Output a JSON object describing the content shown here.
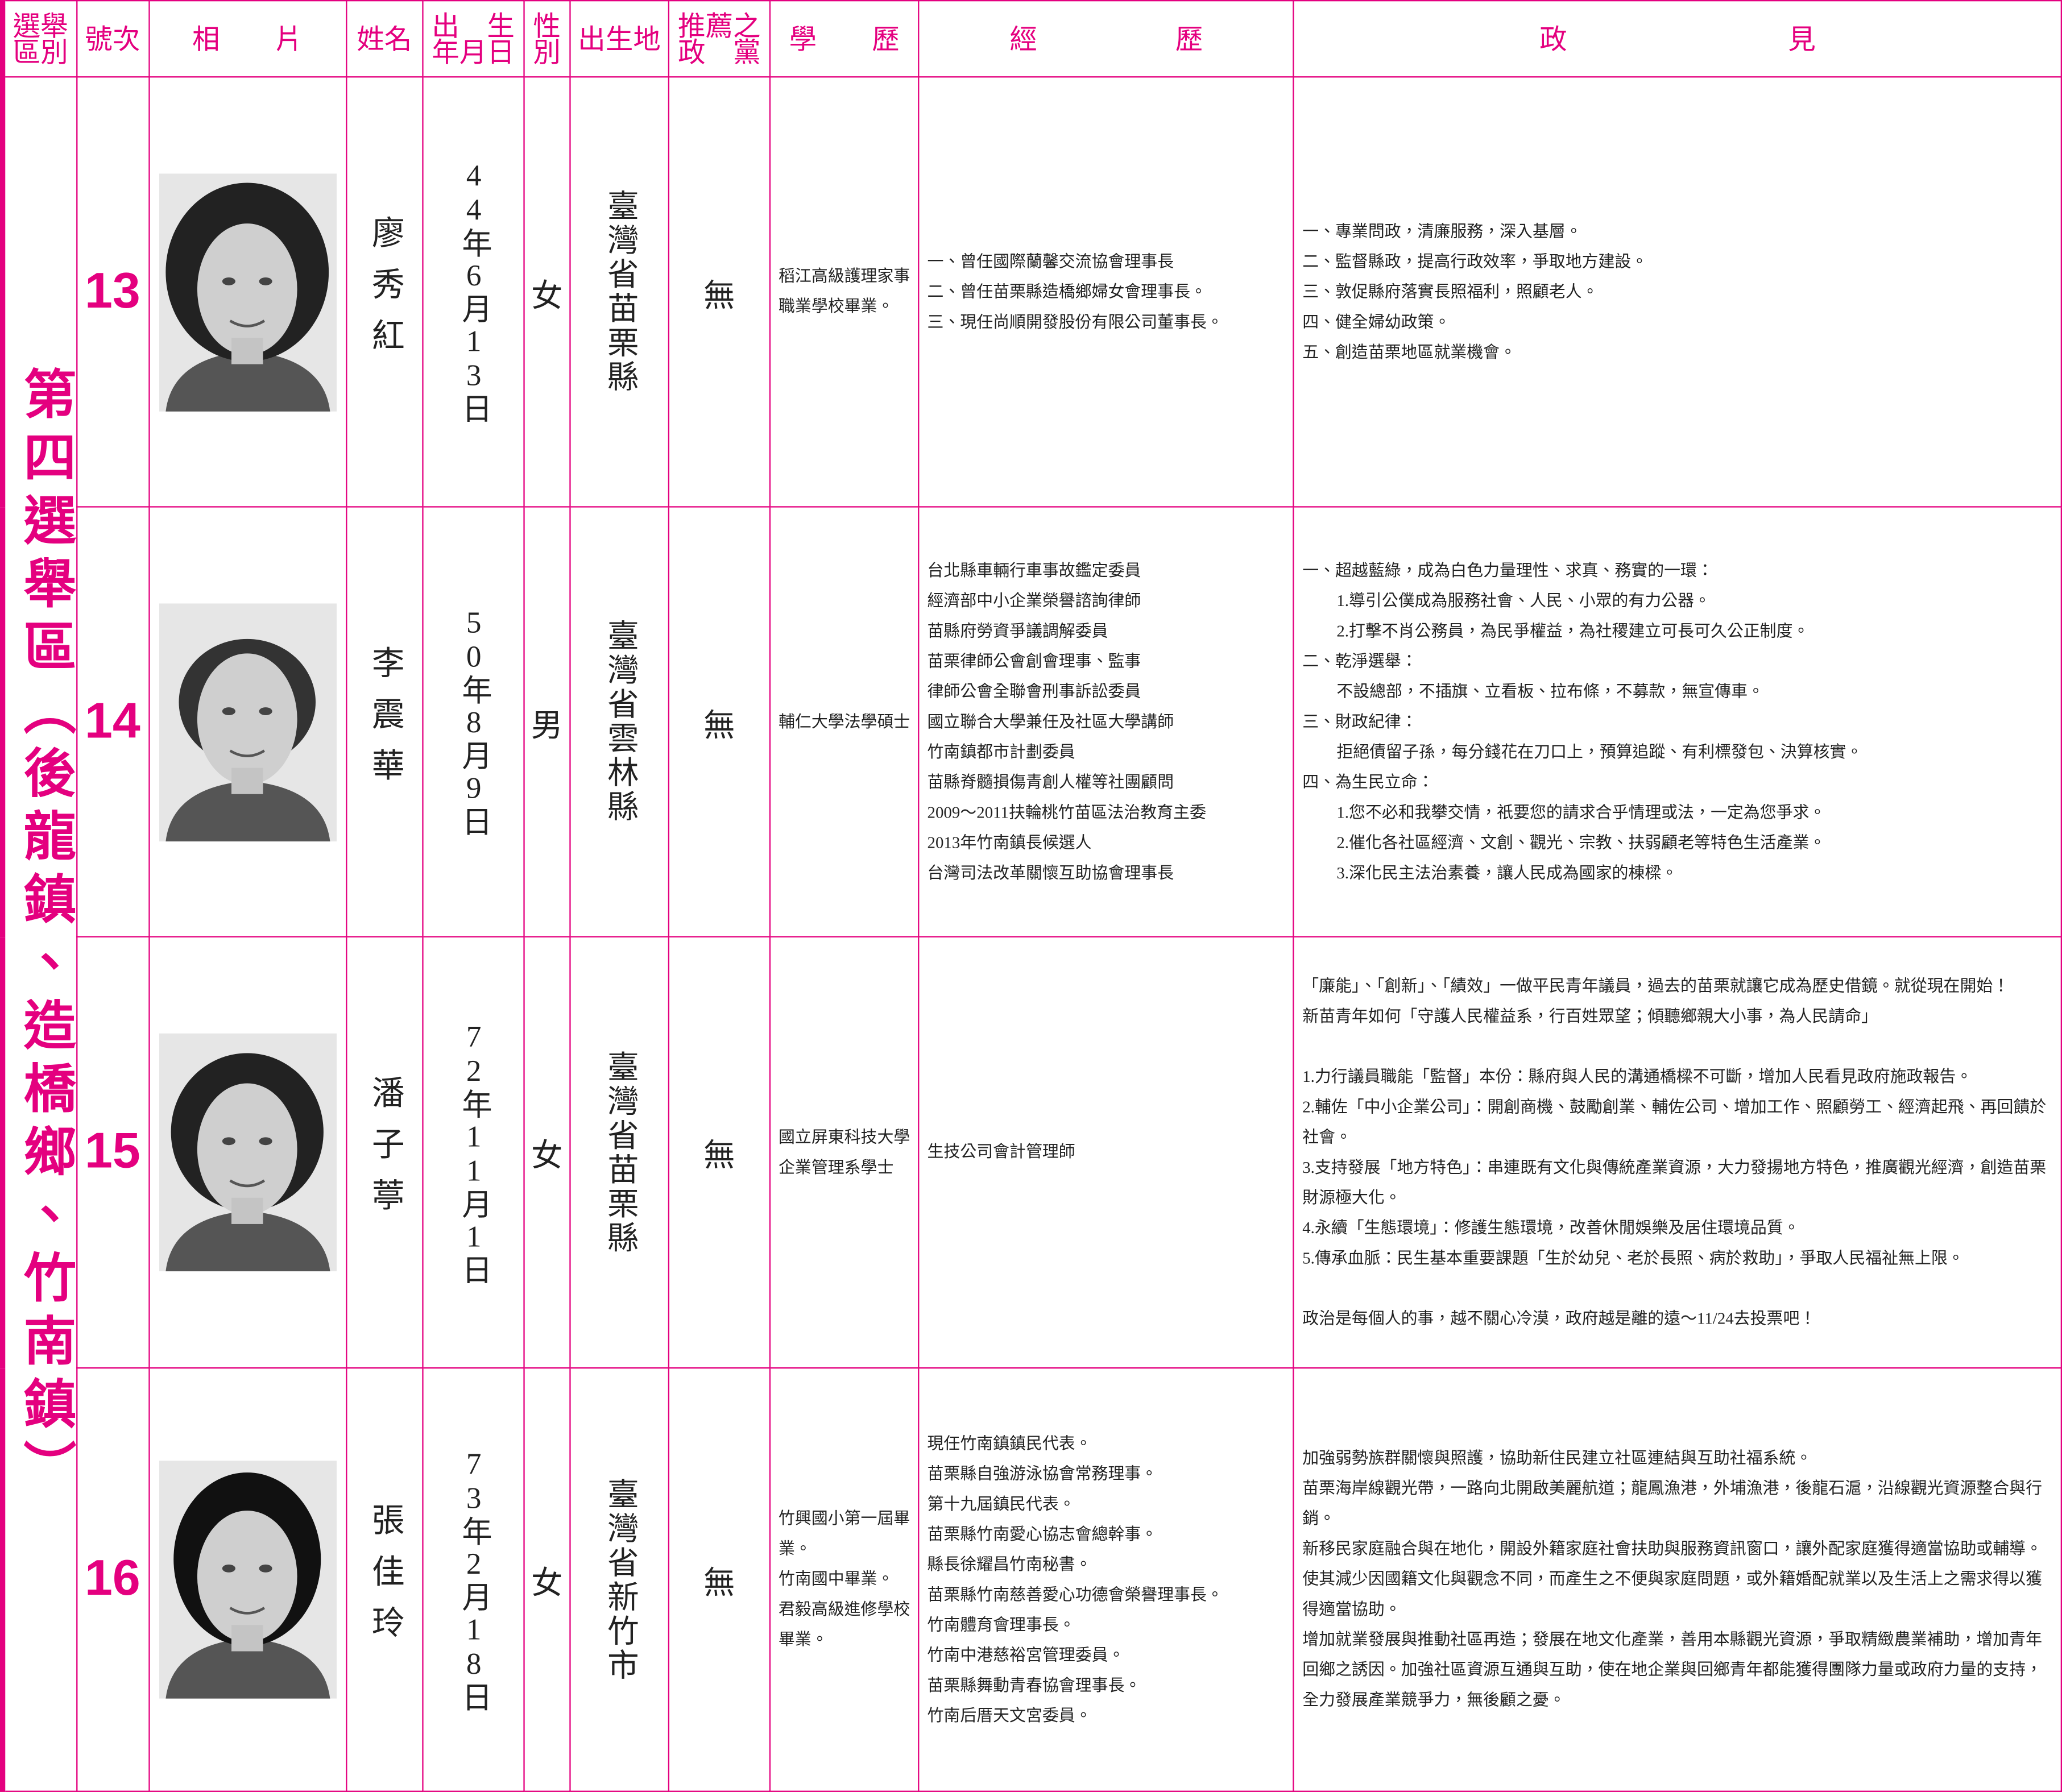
{
  "header": {
    "columns": [
      [
        "選舉",
        "區別"
      ],
      [
        "號次"
      ],
      [
        "相　　片"
      ],
      [
        "姓名"
      ],
      [
        "出　生",
        "年月日"
      ],
      [
        "性",
        "別"
      ],
      [
        "出生地"
      ],
      [
        "推薦之",
        "政　黨"
      ],
      [
        "學　　歷"
      ],
      [
        "經　　　　　歷"
      ],
      [
        "政　　　　　　　　見"
      ]
    ]
  },
  "district": "第四選舉區（後龍鎮、造橋鄉、竹南鎮）",
  "candidates": [
    {
      "number": "13",
      "name": "廖秀紅",
      "birth": "44年6月13日",
      "gender": "女",
      "birthplace": "臺灣省苗栗縣",
      "party": "無",
      "education": [
        "稻江高級護理家事職業學校畢業。"
      ],
      "experience": [
        "一、曾任國際蘭馨交流協會理事長",
        "二、曾任苗栗縣造橋鄉婦女會理事長。",
        "三、現任尚順開發股份有限公司董事長。"
      ],
      "platform": [
        [
          "一、專業問政，清廉服務，深入基層。",
          "二、監督縣政，提高行政效率，爭取地方建設。",
          "三、敦促縣府落實長照福利，照顧老人。",
          "四、健全婦幼政策。",
          "五、創造苗栗地區就業機會。"
        ]
      ]
    },
    {
      "number": "14",
      "name": "李震華",
      "birth": "50年8月9日",
      "gender": "男",
      "birthplace": "臺灣省雲林縣",
      "party": "無",
      "education": [
        "輔仁大學法學碩士"
      ],
      "experience": [
        "台北縣車輛行車事故鑑定委員",
        "經濟部中小企業榮譽諮詢律師",
        "苗縣府勞資爭議調解委員",
        "苗栗律師公會創會理事、監事",
        "律師公會全聯會刑事訴訟委員",
        "國立聯合大學兼任及社區大學講師",
        "竹南鎮都市計劃委員",
        "苗縣脊髓損傷青創人權等社團顧問",
        "2009～2011扶輪桃竹苗區法治教育主委",
        "2013年竹南鎮長候選人",
        "台灣司法改革關懷互助協會理事長"
      ],
      "platform": [
        [
          {
            "text": "一、超越藍綠，成為白色力量理性、求真、務實的一環：",
            "sub": [
              "1.導引公僕成為服務社會、人民、小眾的有力公器。",
              "2.打擊不肖公務員，為民爭權益，為社稷建立可長可久公正制度。"
            ]
          },
          {
            "text": "二、乾淨選舉：",
            "sub": [
              "不設總部，不插旗、立看板、拉布條，不募款，無宣傳車。"
            ]
          },
          {
            "text": "三、財政紀律：",
            "sub": [
              "拒絕債留子孫，每分錢花在刀口上，預算追蹤、有利標發包、決算核實。"
            ]
          },
          {
            "text": "四、為生民立命：",
            "sub": [
              "1.您不必和我攀交情，祇要您的請求合乎情理或法，一定為您爭求。",
              "2.催化各社區經濟、文創、觀光、宗教、扶弱顧老等特色生活產業。",
              "3.深化民主法治素養，讓人民成為國家的棟樑。"
            ]
          }
        ]
      ]
    },
    {
      "number": "15",
      "name": "潘子葶",
      "birth": "72年11月1日",
      "gender": "女",
      "birthplace": "臺灣省苗栗縣",
      "party": "無",
      "education": [
        "國立屏東科技大學企業管理系學士"
      ],
      "experience": [
        "生技公司會計管理師"
      ],
      "platform": [
        [
          "「廉能」、「創新」、「績效」一做平民青年議員，過去的苗栗就讓它成為歷史借鏡。就從現在開始！",
          "新苗青年如何「守護人民權益系，行百姓眾望；傾聽鄉親大小事，為人民請命」"
        ],
        [
          "1.力行議員職能「監督」本份：縣府與人民的溝通橋樑不可斷，增加人民看見政府施政報告。",
          "2.輔佐「中小企業公司」：開創商機、鼓勵創業、輔佐公司、增加工作、照顧勞工、經濟起飛、再回饋於社會。",
          "3.支持發展「地方特色」：串連既有文化與傳統產業資源，大力發揚地方特色，推廣觀光經濟，創造苗栗財源極大化。",
          "4.永續「生態環境」：修護生態環境，改善休閒娛樂及居住環境品質。",
          "5.傳承血脈：民生基本重要課題「生於幼兒、老於長照、病於救助」，爭取人民福祉無上限。"
        ],
        [
          "政治是每個人的事，越不關心冷漠，政府越是離的遠～11/24去投票吧！"
        ]
      ]
    },
    {
      "number": "16",
      "name": "張佳玲",
      "birth": "73年2月18日",
      "gender": "女",
      "birthplace": "臺灣省新竹市",
      "party": "無",
      "education": [
        "竹興國小第一屆畢業。",
        "竹南國中畢業。",
        "君毅高級進修學校畢業。"
      ],
      "experience": [
        "現任竹南鎮鎮民代表。",
        "苗栗縣自強游泳協會常務理事。",
        "第十九屆鎮民代表。",
        "苗栗縣竹南愛心協志會總幹事。",
        "縣長徐耀昌竹南秘書。",
        "苗栗縣竹南慈善愛心功德會榮譽理事長。",
        "竹南體育會理事長。",
        "竹南中港慈裕宮管理委員。",
        "苗栗縣舞動青春協會理事長。",
        "竹南后厝天文宮委員。"
      ],
      "platform": [
        [
          "加強弱勢族群關懷與照護，協助新住民建立社區連結與互助社福系統。",
          "苗栗海岸線觀光帶，一路向北開啟美麗航道；龍鳳漁港，外埔漁港，後龍石滬，沿線觀光資源整合與行銷。",
          "新移民家庭融合與在地化，開設外籍家庭社會扶助與服務資訊窗口，讓外配家庭獲得適當協助或輔導。使其減少因國籍文化與觀念不同，而產生之不便與家庭問題，或外籍婚配就業以及生活上之需求得以獲得適當協助。",
          "增加就業發展與推動社區再造；發展在地文化產業，善用本縣觀光資源，爭取精緻農業補助，增加青年回鄉之誘因。加強社區資源互通與互助，使在地企業與回鄉青年都能獲得團隊力量或政府力量的支持，全力發展產業競爭力，無後顧之憂。"
        ]
      ]
    }
  ]
}
